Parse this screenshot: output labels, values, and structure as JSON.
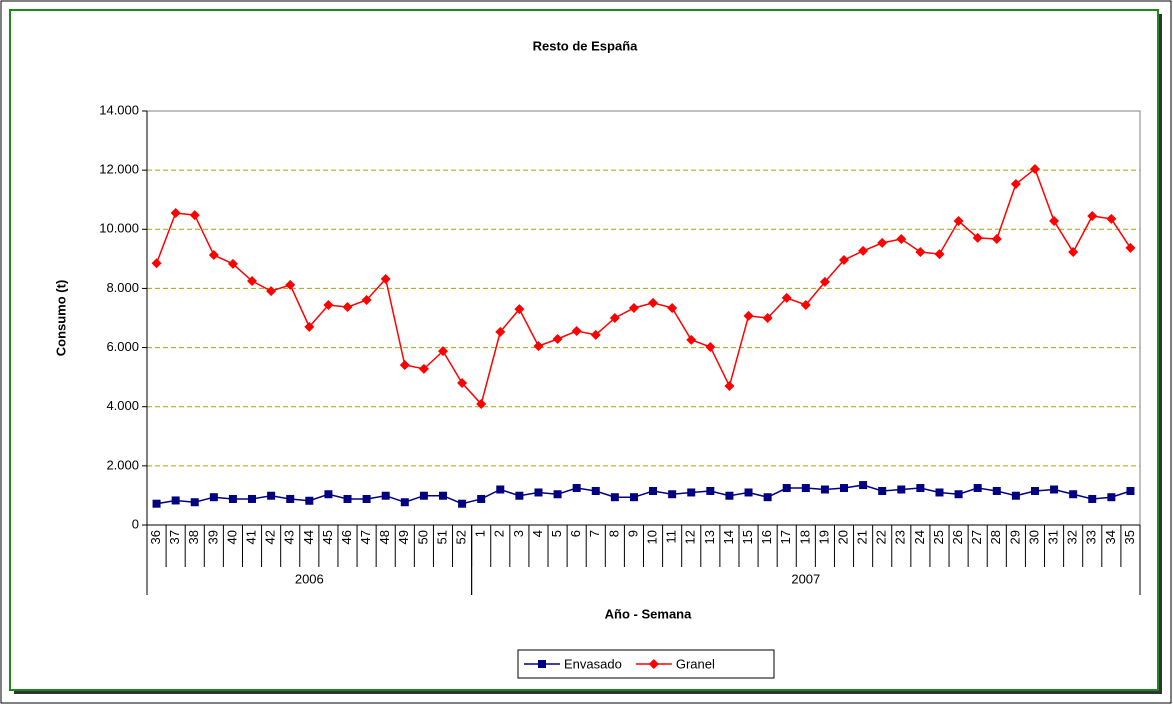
{
  "chart_data": {
    "type": "line",
    "title": "Resto de España",
    "xlabel": "Año - Semana",
    "ylabel": "Consumo (t)",
    "category_groups": [
      {
        "label": "2006",
        "categories": [
          "36",
          "37",
          "38",
          "39",
          "40",
          "41",
          "42",
          "43",
          "44",
          "45",
          "46",
          "47",
          "48",
          "49",
          "50",
          "51",
          "52"
        ]
      },
      {
        "label": "2007",
        "categories": [
          "1",
          "2",
          "3",
          "4",
          "5",
          "6",
          "7",
          "8",
          "9",
          "10",
          "11",
          "12",
          "13",
          "14",
          "15",
          "16",
          "17",
          "18",
          "19",
          "20",
          "21",
          "22",
          "23",
          "24",
          "25",
          "26",
          "27",
          "28",
          "29",
          "30",
          "31",
          "32",
          "33",
          "34",
          "35"
        ]
      }
    ],
    "series": [
      {
        "name": "Envasado",
        "color": "#000080",
        "marker": "square",
        "values": [
          720,
          830,
          770,
          940,
          880,
          880,
          990,
          880,
          820,
          1040,
          880,
          880,
          990,
          770,
          990,
          990,
          720,
          880,
          1200,
          990,
          1100,
          1040,
          1250,
          1150,
          940,
          940,
          1150,
          1040,
          1100,
          1150,
          990,
          1100,
          940,
          1250,
          1250,
          1200,
          1250,
          1350,
          1150,
          1200,
          1250,
          1100,
          1040,
          1250,
          1150,
          990,
          1150,
          1200,
          1040,
          880,
          940,
          1150
        ]
      },
      {
        "name": "Granel",
        "color": "#ff0000",
        "marker": "diamond",
        "values": [
          8850,
          10550,
          10480,
          9130,
          8830,
          8250,
          7910,
          8120,
          6700,
          7440,
          7370,
          7610,
          8320,
          5410,
          5280,
          5880,
          4800,
          4090,
          6530,
          7300,
          6050,
          6290,
          6560,
          6430,
          7000,
          7340,
          7510,
          7340,
          6260,
          6020,
          4700,
          7070,
          7000,
          7680,
          7440,
          8220,
          8960,
          9270,
          9540,
          9670,
          9230,
          9160,
          10280,
          9710,
          9670,
          11530,
          12040,
          10280,
          9230,
          10450,
          10350,
          9370
        ]
      }
    ],
    "ylim": [
      0,
      14000
    ],
    "yticks": [
      0,
      {
        "value": 2000,
        "label": "2.000"
      },
      {
        "value": 4000,
        "label": "4.000"
      },
      {
        "value": 6000,
        "label": "6.000"
      },
      {
        "value": 8000,
        "label": "8.000"
      },
      {
        "value": 10000,
        "label": "10.000"
      },
      {
        "value": 12000,
        "label": "12.000"
      },
      {
        "value": 14000,
        "label": "14.000"
      }
    ],
    "grid": true,
    "legend": "bottom"
  }
}
